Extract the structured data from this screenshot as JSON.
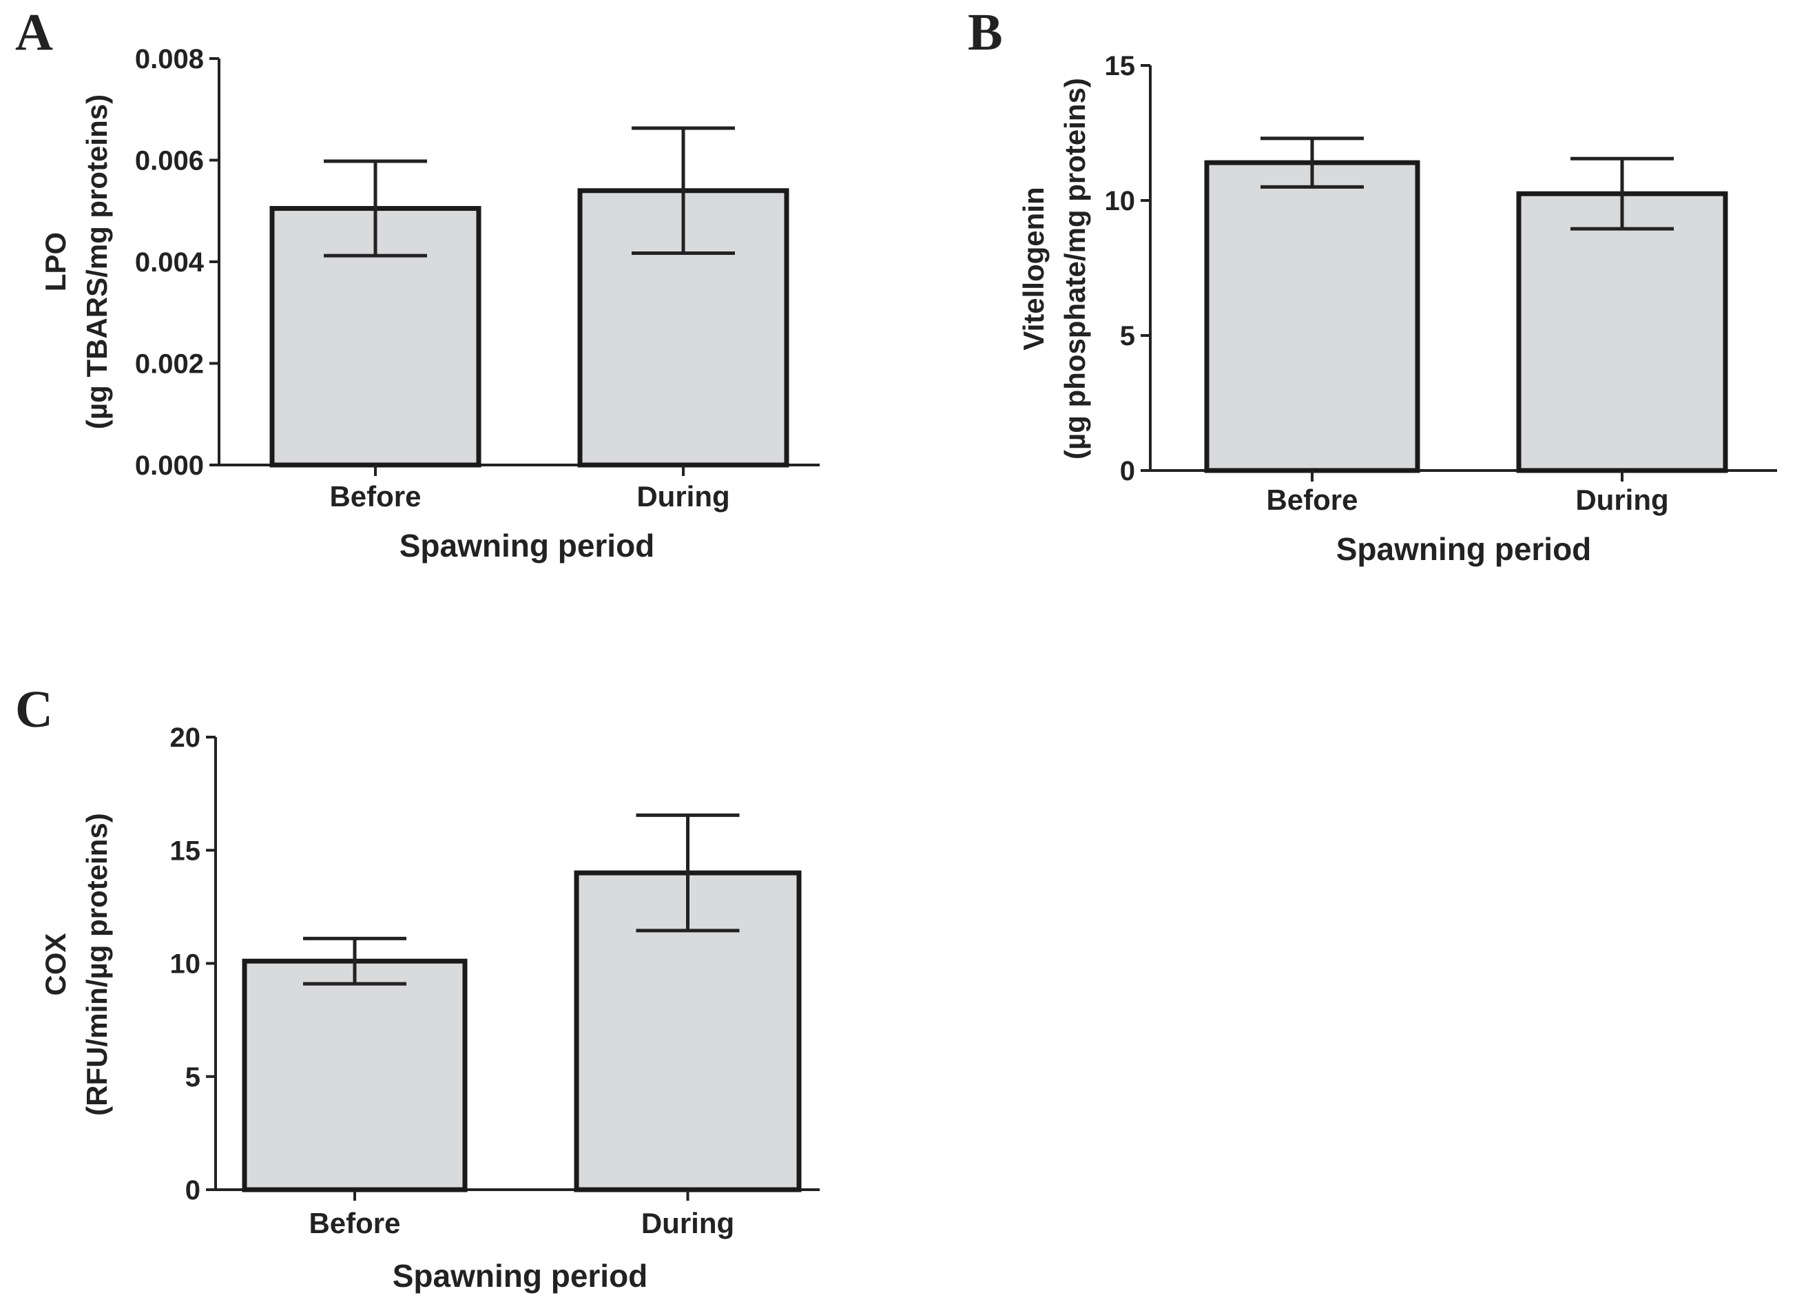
{
  "chart_data": [
    {
      "type": "bar",
      "panel": "A",
      "categories": [
        "Before",
        "During"
      ],
      "values": [
        0.00505,
        0.0054
      ],
      "errors": [
        0.00093,
        0.00123
      ],
      "ylim": [
        0,
        0.008
      ],
      "yticks": [
        "0.000",
        "0.002",
        "0.004",
        "0.006",
        "0.008"
      ],
      "ytick_values": [
        0,
        0.002,
        0.004,
        0.006,
        0.008
      ],
      "ylabel_line1": "LPO",
      "ylabel_line2": "(µg TBARS/mg proteins)",
      "xlabel": "Spawning period"
    },
    {
      "type": "bar",
      "panel": "B",
      "categories": [
        "Before",
        "During"
      ],
      "values": [
        11.4,
        10.25
      ],
      "errors": [
        0.9,
        1.3
      ],
      "ylim": [
        0,
        15
      ],
      "yticks": [
        "0",
        "5",
        "10",
        "15"
      ],
      "ytick_values": [
        0,
        5,
        10,
        15
      ],
      "ylabel_line1": "Vitellogenin",
      "ylabel_line2": "(µg phosphate/mg proteins)",
      "xlabel": "Spawning period"
    },
    {
      "type": "bar",
      "panel": "C",
      "categories": [
        "Before",
        "During"
      ],
      "values": [
        10.1,
        14.0
      ],
      "errors": [
        1.0,
        2.55
      ],
      "ylim": [
        0,
        20
      ],
      "yticks": [
        "0",
        "5",
        "10",
        "15",
        "20"
      ],
      "ytick_values": [
        0,
        5,
        10,
        15,
        20
      ],
      "ylabel_line1": "COX",
      "ylabel_line2": "(RFU/min/µg proteins)",
      "xlabel": "Spawning period"
    }
  ]
}
